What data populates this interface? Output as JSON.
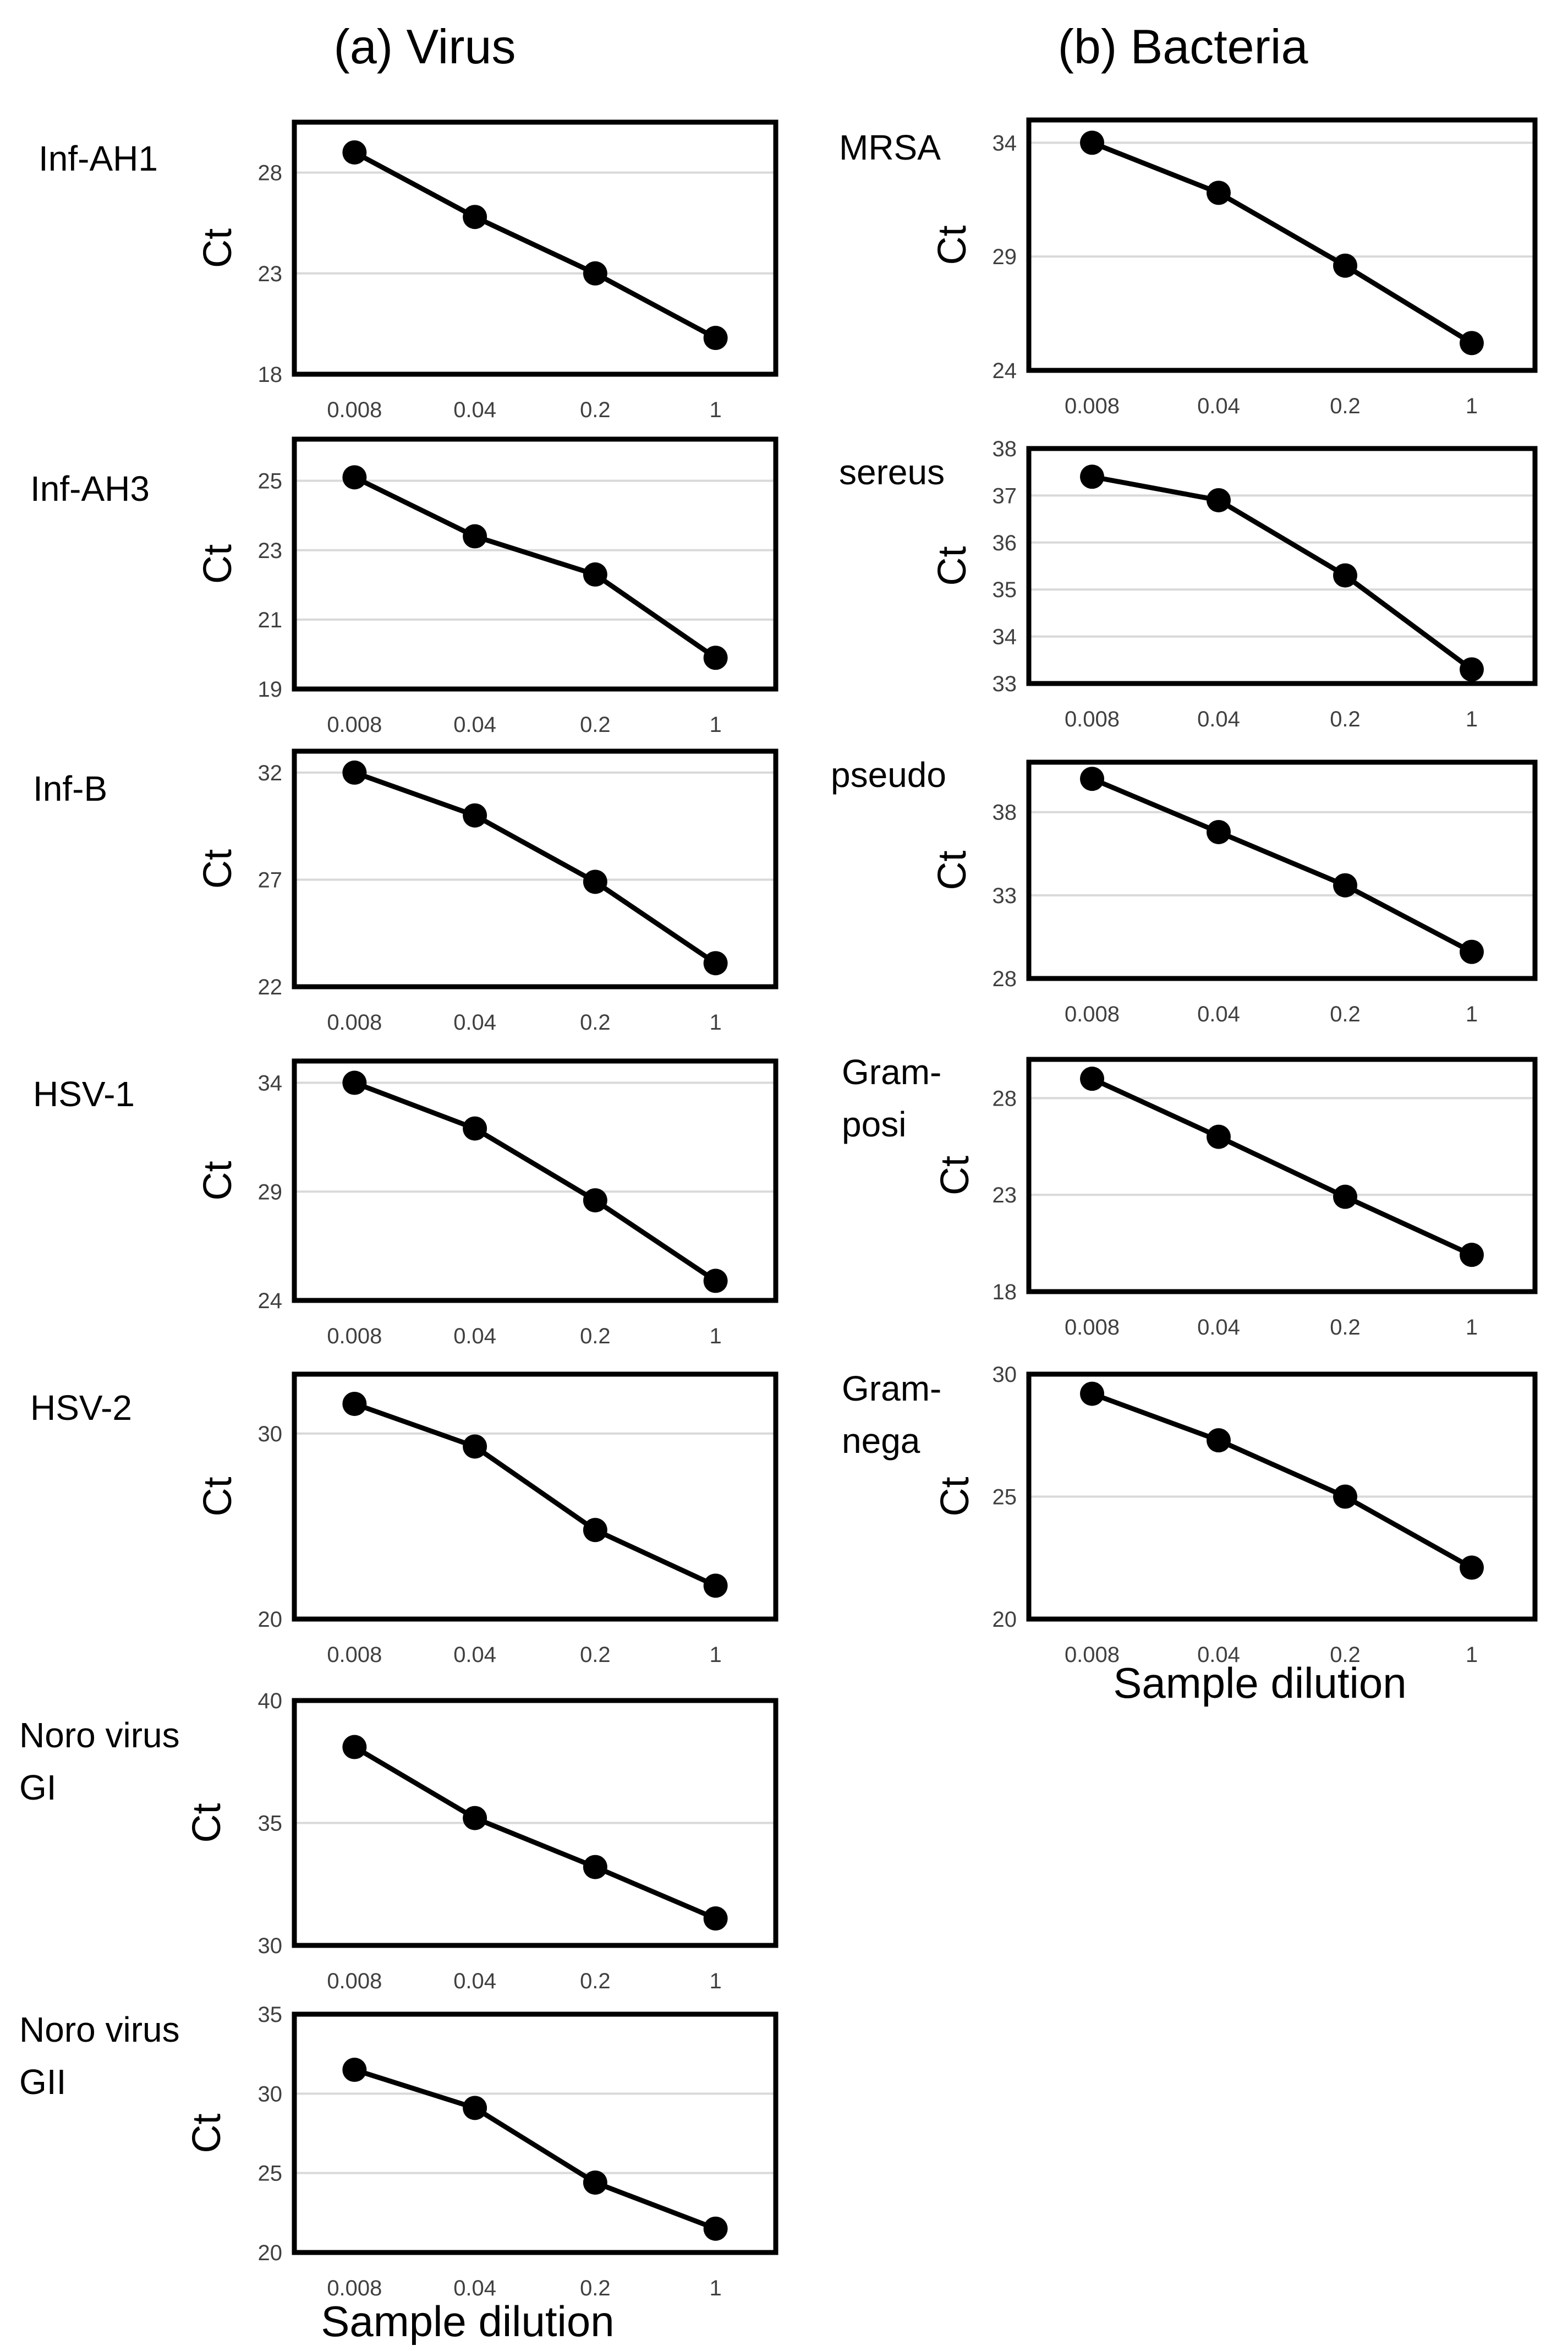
{
  "figure": {
    "column_titles": [
      "(a) Virus",
      "(b) Bacteria"
    ],
    "xlabel": "Sample dilution"
  },
  "chart_data": [
    {
      "type": "line",
      "column": 0,
      "label": [
        "Inf-AH1"
      ],
      "ylabel": "Ct",
      "categories": [
        "0.008",
        "0.04",
        "0.2",
        "1"
      ],
      "values": [
        29.0,
        25.8,
        23.0,
        19.8
      ],
      "ylim": [
        18,
        30.5
      ],
      "yticks": [
        18,
        23,
        28
      ],
      "grid": true
    },
    {
      "type": "line",
      "column": 0,
      "label": [
        "Inf-AH3"
      ],
      "ylabel": "Ct",
      "categories": [
        "0.008",
        "0.04",
        "0.2",
        "1"
      ],
      "values": [
        25.1,
        23.4,
        22.3,
        19.9
      ],
      "ylim": [
        19,
        26.2
      ],
      "yticks": [
        19,
        21,
        23,
        25
      ],
      "grid": true
    },
    {
      "type": "line",
      "column": 0,
      "label": [
        "Inf-B"
      ],
      "ylabel": "Ct",
      "categories": [
        "0.008",
        "0.04",
        "0.2",
        "1"
      ],
      "values": [
        32.0,
        30.0,
        26.9,
        23.1
      ],
      "ylim": [
        22,
        33.0
      ],
      "yticks": [
        22,
        27,
        32
      ],
      "grid": true
    },
    {
      "type": "line",
      "column": 0,
      "label": [
        "HSV-1"
      ],
      "ylabel": "Ct",
      "categories": [
        "0.008",
        "0.04",
        "0.2",
        "1"
      ],
      "values": [
        34.0,
        31.9,
        28.6,
        24.9
      ],
      "ylim": [
        24,
        35.0
      ],
      "yticks": [
        24,
        29,
        34
      ],
      "grid": true
    },
    {
      "type": "line",
      "column": 0,
      "label": [
        "HSV-2"
      ],
      "ylabel": "Ct",
      "categories": [
        "0.008",
        "0.04",
        "0.2",
        "1"
      ],
      "values": [
        31.6,
        29.3,
        24.8,
        21.8
      ],
      "ylim": [
        20,
        33.2
      ],
      "yticks": [
        20,
        30
      ],
      "grid": true
    },
    {
      "type": "line",
      "column": 0,
      "label": [
        "Noro virus",
        "GI"
      ],
      "ylabel": "Ct",
      "categories": [
        "0.008",
        "0.04",
        "0.2",
        "1"
      ],
      "values": [
        38.1,
        35.2,
        33.2,
        31.1
      ],
      "ylim": [
        30,
        40
      ],
      "yticks": [
        30,
        35,
        40
      ],
      "grid": true
    },
    {
      "type": "line",
      "column": 0,
      "label": [
        "Noro virus",
        "GII"
      ],
      "ylabel": "Ct",
      "categories": [
        "0.008",
        "0.04",
        "0.2",
        "1"
      ],
      "values": [
        31.5,
        29.1,
        24.4,
        21.5
      ],
      "ylim": [
        20,
        35
      ],
      "yticks": [
        20,
        25,
        30,
        35
      ],
      "grid": true
    },
    {
      "type": "line",
      "column": 1,
      "label": [
        "MRSA"
      ],
      "ylabel": "Ct",
      "categories": [
        "0.008",
        "0.04",
        "0.2",
        "1"
      ],
      "values": [
        34.0,
        31.8,
        28.6,
        25.2
      ],
      "ylim": [
        24,
        35.0
      ],
      "yticks": [
        24,
        29,
        34
      ],
      "grid": true
    },
    {
      "type": "line",
      "column": 1,
      "label": [
        "sereus"
      ],
      "ylabel": "Ct",
      "categories": [
        "0.008",
        "0.04",
        "0.2",
        "1"
      ],
      "values": [
        37.4,
        36.9,
        35.3,
        33.3
      ],
      "ylim": [
        33,
        38
      ],
      "yticks": [
        33,
        34,
        35,
        36,
        37,
        38
      ],
      "grid": true
    },
    {
      "type": "line",
      "column": 1,
      "label": [
        "pseudo"
      ],
      "ylabel": "Ct",
      "categories": [
        "0.008",
        "0.04",
        "0.2",
        "1"
      ],
      "values": [
        40.0,
        36.8,
        33.6,
        29.6
      ],
      "ylim": [
        28,
        41.0
      ],
      "yticks": [
        28,
        33,
        38
      ],
      "grid": true
    },
    {
      "type": "line",
      "column": 1,
      "label": [
        "Gram-",
        "posi"
      ],
      "ylabel": "Ct",
      "categories": [
        "0.008",
        "0.04",
        "0.2",
        "1"
      ],
      "values": [
        29.0,
        26.0,
        22.9,
        19.9
      ],
      "ylim": [
        18,
        30.0
      ],
      "yticks": [
        18,
        23,
        28
      ],
      "grid": true
    },
    {
      "type": "line",
      "column": 1,
      "label": [
        "Gram-",
        "nega"
      ],
      "ylabel": "Ct",
      "categories": [
        "0.008",
        "0.04",
        "0.2",
        "1"
      ],
      "values": [
        29.2,
        27.3,
        25.0,
        22.1
      ],
      "ylim": [
        20,
        30
      ],
      "yticks": [
        20,
        25,
        30
      ],
      "grid": true
    }
  ]
}
